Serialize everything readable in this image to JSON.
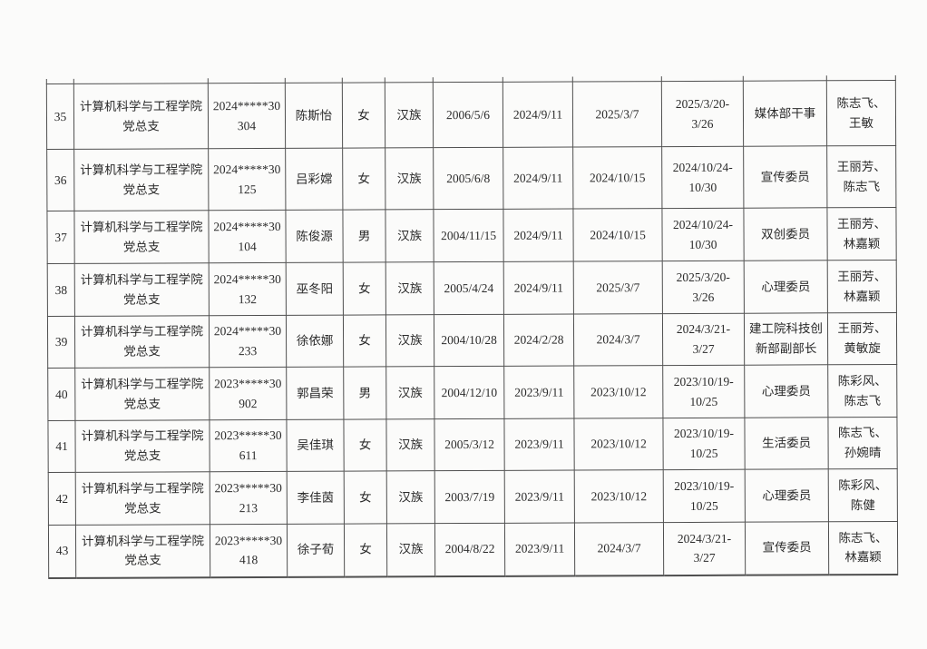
{
  "colors": {
    "paper": "#fbfbfa",
    "ink": "#2a2a2a",
    "line": "#4f4f4f"
  },
  "table": {
    "rows": [
      [
        "35",
        "计算机科学与工程学院党总支",
        "2024*****30304",
        "陈斯怡",
        "女",
        "汉族",
        "2006/5/6",
        "2024/9/11",
        "2025/3/7",
        "2025/3/20-3/26",
        "媒体部干事",
        "陈志飞、王敏"
      ],
      [
        "36",
        "计算机科学与工程学院党总支",
        "2024*****30125",
        "吕彩嫦",
        "女",
        "汉族",
        "2005/6/8",
        "2024/9/11",
        "2024/10/15",
        "2024/10/24-10/30",
        "宣传委员",
        "王丽芳、陈志飞"
      ],
      [
        "37",
        "计算机科学与工程学院党总支",
        "2024*****30104",
        "陈俊源",
        "男",
        "汉族",
        "2004/11/15",
        "2024/9/11",
        "2024/10/15",
        "2024/10/24-10/30",
        "双创委员",
        "王丽芳、林嘉颖"
      ],
      [
        "38",
        "计算机科学与工程学院党总支",
        "2024*****30132",
        "巫冬阳",
        "女",
        "汉族",
        "2005/4/24",
        "2024/9/11",
        "2025/3/7",
        "2025/3/20-3/26",
        "心理委员",
        "王丽芳、林嘉颖"
      ],
      [
        "39",
        "计算机科学与工程学院党总支",
        "2024*****30233",
        "徐依娜",
        "女",
        "汉族",
        "2004/10/28",
        "2024/2/28",
        "2024/3/7",
        "2024/3/21-3/27",
        "建工院科技创新部副部长",
        "王丽芳、黄敏旋"
      ],
      [
        "40",
        "计算机科学与工程学院党总支",
        "2023*****30902",
        "郭昌荣",
        "男",
        "汉族",
        "2004/12/10",
        "2023/9/11",
        "2023/10/12",
        "2023/10/19-10/25",
        "心理委员",
        "陈彩风、陈志飞"
      ],
      [
        "41",
        "计算机科学与工程学院党总支",
        "2023*****30611",
        "吴佳琪",
        "女",
        "汉族",
        "2005/3/12",
        "2023/9/11",
        "2023/10/12",
        "2023/10/19-10/25",
        "生活委员",
        "陈志飞、孙婉晴"
      ],
      [
        "42",
        "计算机科学与工程学院党总支",
        "2023*****30213",
        "李佳茵",
        "女",
        "汉族",
        "2003/7/19",
        "2023/9/11",
        "2023/10/12",
        "2023/10/19-10/25",
        "心理委员",
        "陈彩风、陈健"
      ],
      [
        "43",
        "计算机科学与工程学院党总支",
        "2023*****30418",
        "徐子荀",
        "女",
        "汉族",
        "2004/8/22",
        "2023/9/11",
        "2024/3/7",
        "2024/3/21-3/27",
        "宣传委员",
        "陈志飞、林嘉颖"
      ]
    ]
  }
}
